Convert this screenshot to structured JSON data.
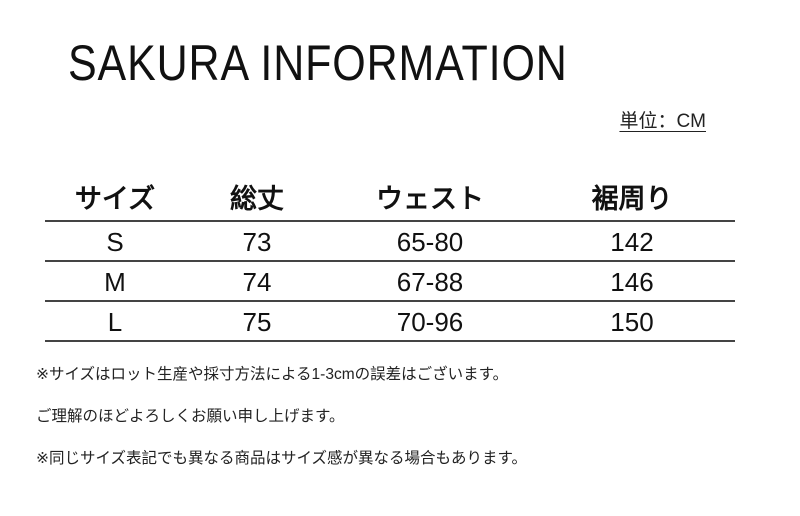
{
  "title": "SAKURA INFORMATION",
  "unit": "単位：CM",
  "table": {
    "headers": [
      "サイズ",
      "総丈",
      "ウェスト",
      "裾周り"
    ],
    "rows": [
      [
        "S",
        "73",
        "65-80",
        "142"
      ],
      [
        "M",
        "74",
        "67-88",
        "146"
      ],
      [
        "L",
        "75",
        "70-96",
        "150"
      ]
    ]
  },
  "notes": [
    "※サイズはロット生産や採寸方法による1-3cmの誤差はございます。",
    "ご理解のほどよろしくお願い申し上げます。",
    "※同じサイズ表記でも異なる商品はサイズ感が異なる場合もあります。"
  ]
}
